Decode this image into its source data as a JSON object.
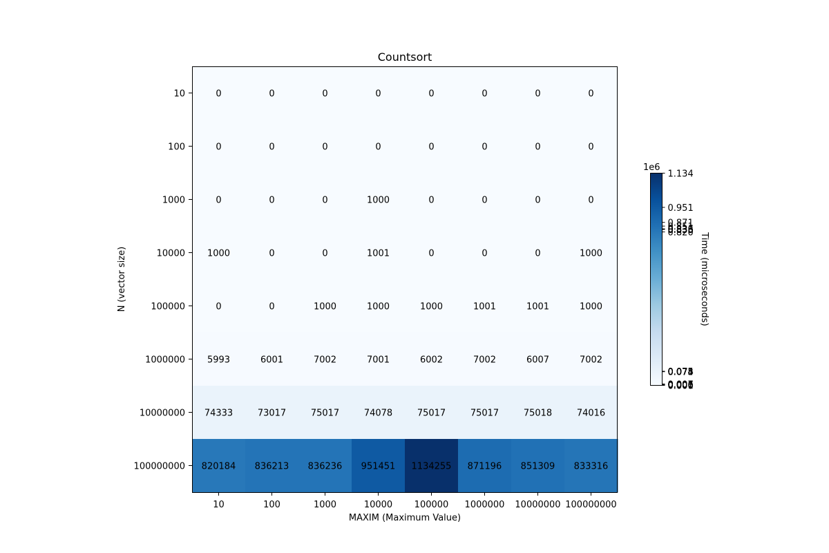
{
  "chart_data": {
    "type": "heatmap",
    "title": "Countsort",
    "xlabel": "MAXIM (Maximum Value)",
    "ylabel": "N (vector size)",
    "x_categories": [
      "10",
      "100",
      "1000",
      "10000",
      "100000",
      "1000000",
      "10000000",
      "100000000"
    ],
    "y_categories": [
      "10",
      "100",
      "1000",
      "10000",
      "100000",
      "1000000",
      "10000000",
      "100000000"
    ],
    "values": [
      [
        0,
        0,
        0,
        0,
        0,
        0,
        0,
        0
      ],
      [
        0,
        0,
        0,
        0,
        0,
        0,
        0,
        0
      ],
      [
        0,
        0,
        0,
        1000,
        0,
        0,
        0,
        0
      ],
      [
        1000,
        0,
        0,
        1001,
        0,
        0,
        0,
        1000
      ],
      [
        0,
        0,
        1000,
        1000,
        1000,
        1001,
        1001,
        1000
      ],
      [
        5993,
        6001,
        7002,
        7001,
        6002,
        7002,
        6007,
        7002
      ],
      [
        74333,
        73017,
        75017,
        74078,
        75017,
        75017,
        75018,
        74016
      ],
      [
        820184,
        836213,
        836236,
        951451,
        1134255,
        871196,
        851309,
        833316
      ]
    ],
    "colormap": "Blues",
    "vmin": 0,
    "vmax": 1134255,
    "colorbar": {
      "label": "Time (microseconds)",
      "offset_text": "1e6",
      "tick_values": [
        0,
        1000,
        1001,
        5993,
        6001,
        6002,
        6007,
        7001,
        7002,
        73017,
        74016,
        74078,
        74333,
        75017,
        75018,
        820184,
        833316,
        836213,
        836236,
        851309,
        871196,
        951451,
        1134255
      ],
      "tick_labels": [
        "0.000",
        "0.001",
        "0.001",
        "0.006",
        "0.006",
        "0.006",
        "0.006",
        "0.007",
        "0.007",
        "0.073",
        "0.074",
        "0.074",
        "0.074",
        "0.075",
        "0.075",
        "0.820",
        "0.833",
        "0.836",
        "0.836",
        "0.851",
        "0.871",
        "0.951",
        "1.134"
      ]
    },
    "grid": false,
    "legend": "none"
  }
}
